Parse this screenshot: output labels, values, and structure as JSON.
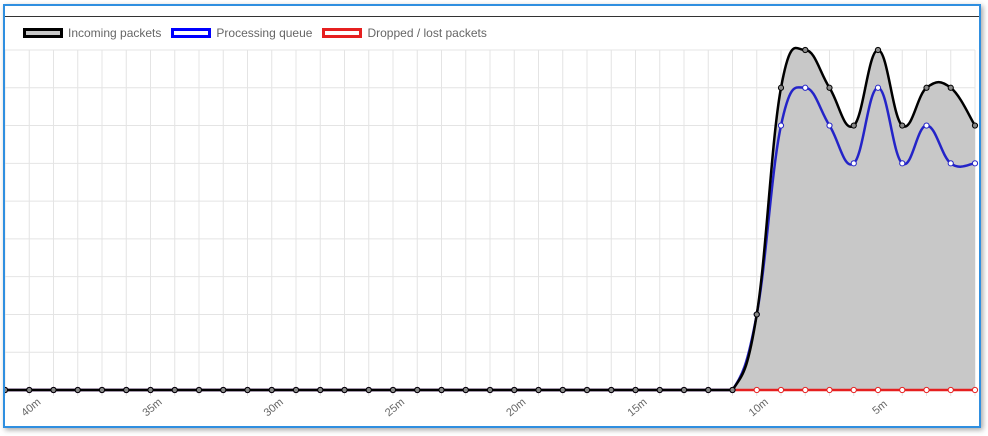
{
  "chart_data": {
    "type": "line",
    "title": "",
    "xlabel": "",
    "ylabel": "",
    "x_tick_labels": [
      "40m",
      "35m",
      "30m",
      "25m",
      "20m",
      "15m",
      "10m",
      "5m"
    ],
    "x_tick_indices": [
      1,
      6,
      11,
      16,
      21,
      26,
      31,
      36
    ],
    "point_count": 41,
    "ylim": [
      0,
      9
    ],
    "grid": true,
    "legend_position": "top-left",
    "series": [
      {
        "name": "Incoming packets",
        "color": "#000000",
        "fill": "#c8c8c8",
        "values": [
          0,
          0,
          0,
          0,
          0,
          0,
          0,
          0,
          0,
          0,
          0,
          0,
          0,
          0,
          0,
          0,
          0,
          0,
          0,
          0,
          0,
          0,
          0,
          0,
          0,
          0,
          0,
          0,
          0,
          0,
          0,
          2,
          8,
          9,
          8,
          7,
          9,
          7,
          8,
          8,
          7
        ]
      },
      {
        "name": "Processing queue",
        "color": "#2424c8",
        "fill": "none",
        "values": [
          0,
          0,
          0,
          0,
          0,
          0,
          0,
          0,
          0,
          0,
          0,
          0,
          0,
          0,
          0,
          0,
          0,
          0,
          0,
          0,
          0,
          0,
          0,
          0,
          0,
          0,
          0,
          0,
          0,
          0,
          0,
          2,
          7,
          8,
          7,
          6,
          8,
          6,
          7,
          6,
          6
        ]
      },
      {
        "name": "Dropped / lost packets",
        "color": "#e62020",
        "fill": "none",
        "values": [
          0,
          0,
          0,
          0,
          0,
          0,
          0,
          0,
          0,
          0,
          0,
          0,
          0,
          0,
          0,
          0,
          0,
          0,
          0,
          0,
          0,
          0,
          0,
          0,
          0,
          0,
          0,
          0,
          0,
          0,
          0,
          0,
          0,
          0,
          0,
          0,
          0,
          0,
          0,
          0,
          0
        ]
      }
    ]
  }
}
